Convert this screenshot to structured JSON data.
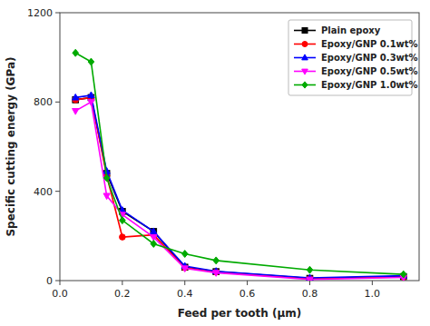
{
  "chart_data": {
    "type": "line",
    "xlabel": "Feed per tooth (μm)",
    "ylabel": "Specific cutting energy (GPa)",
    "x": [
      0.05,
      0.1,
      0.15,
      0.2,
      0.3,
      0.4,
      0.5,
      0.8,
      1.1
    ],
    "series": [
      {
        "name": "Plain epoxy",
        "color": "#000000",
        "marker": "square",
        "values": [
          810,
          820,
          480,
          310,
          220,
          60,
          40,
          10,
          18
        ]
      },
      {
        "name": "Epoxy/GNP 0.1wt%",
        "color": "#ff0000",
        "marker": "circle",
        "values": [
          810,
          820,
          470,
          195,
          205,
          58,
          38,
          8,
          16
        ]
      },
      {
        "name": "Epoxy/GNP 0.3wt%",
        "color": "#0000ff",
        "marker": "triangle-up",
        "values": [
          820,
          830,
          490,
          315,
          220,
          65,
          42,
          12,
          22
        ]
      },
      {
        "name": "Epoxy/GNP 0.5wt%",
        "color": "#ff00ff",
        "marker": "triangle-down",
        "values": [
          760,
          800,
          380,
          295,
          195,
          55,
          35,
          5,
          14
        ]
      },
      {
        "name": "Epoxy/GNP 1.0wt%",
        "color": "#00aa00",
        "marker": "diamond",
        "values": [
          1020,
          980,
          460,
          270,
          165,
          120,
          90,
          48,
          28
        ]
      }
    ],
    "xlim": [
      0.0,
      1.15
    ],
    "ylim": [
      0,
      1200
    ],
    "xticks": [
      {
        "value": 0,
        "label": "0.0"
      },
      0.2,
      0.4,
      0.6,
      0.8,
      {
        "value": 1,
        "label": "1.0"
      }
    ],
    "yticks": [
      0,
      400,
      800,
      1200
    ],
    "grid": false,
    "legend": "upper right"
  }
}
